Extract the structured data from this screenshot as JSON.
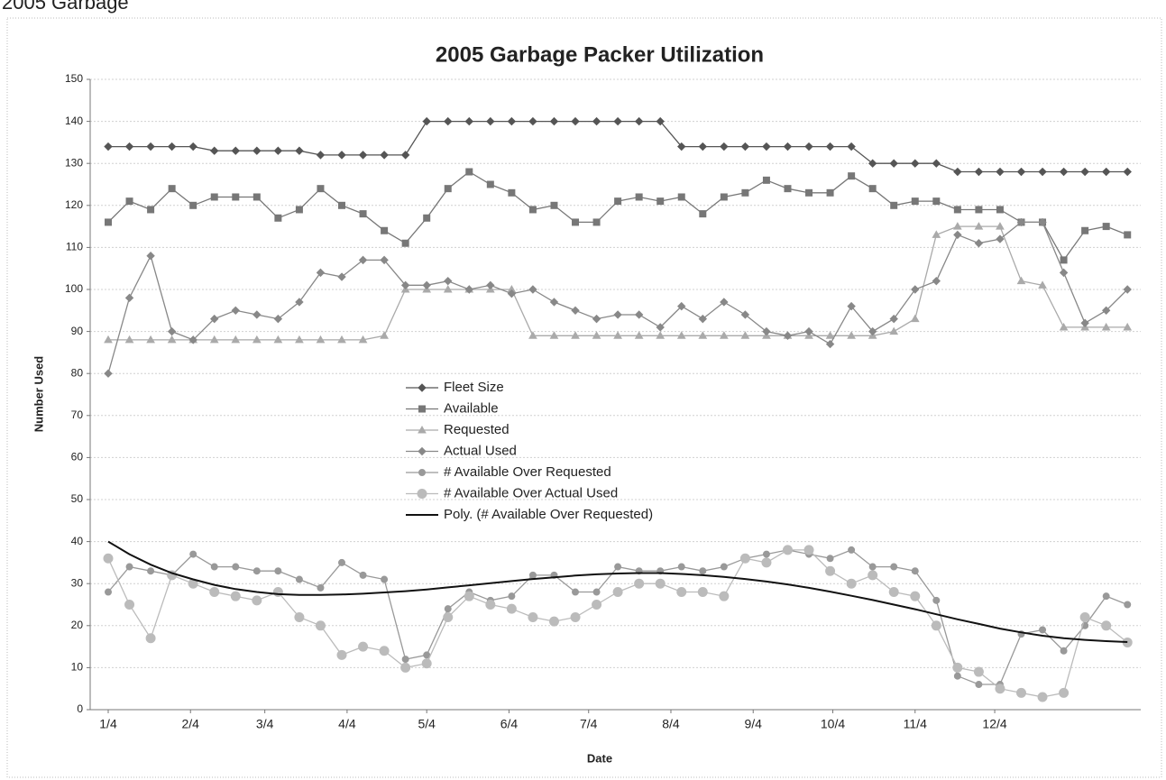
{
  "chart_data": {
    "type": "line",
    "header": "2005 Garbage",
    "title": "2005 Garbage Packer Utilization",
    "x_label": "Date",
    "y_label": "Number Used",
    "x": [
      4,
      12,
      20,
      28,
      36,
      44,
      52,
      60,
      68,
      76,
      84,
      92,
      100,
      108,
      116,
      124,
      132,
      140,
      148,
      156,
      164,
      172,
      180,
      188,
      196,
      204,
      212,
      220,
      228,
      236,
      244,
      252,
      260,
      268,
      276,
      284,
      292,
      300,
      308,
      316,
      324,
      332,
      340,
      348,
      356,
      364,
      372,
      380,
      388
    ],
    "xlim": [
      4,
      392
    ],
    "xticks": [
      {
        "value": 4,
        "label": "1/4"
      },
      {
        "value": 35,
        "label": "2/4"
      },
      {
        "value": 63,
        "label": "3/4"
      },
      {
        "value": 94,
        "label": "4/4"
      },
      {
        "value": 124,
        "label": "5/4"
      },
      {
        "value": 155,
        "label": "6/4"
      },
      {
        "value": 185,
        "label": "7/4"
      },
      {
        "value": 216,
        "label": "8/4"
      },
      {
        "value": 247,
        "label": "9/4"
      },
      {
        "value": 277,
        "label": "10/4"
      },
      {
        "value": 308,
        "label": "11/4"
      },
      {
        "value": 338,
        "label": "12/4"
      }
    ],
    "ylim": [
      0,
      150
    ],
    "yticks": [
      0,
      10,
      20,
      30,
      40,
      50,
      60,
      70,
      80,
      90,
      100,
      110,
      120,
      130,
      140,
      150
    ],
    "grid": true,
    "legend": "center",
    "series": [
      {
        "name": "Fleet Size",
        "color": "#555555",
        "marker": "diamond",
        "values": [
          134,
          134,
          134,
          134,
          134,
          133,
          133,
          133,
          133,
          133,
          132,
          132,
          132,
          132,
          132,
          140,
          140,
          140,
          140,
          140,
          140,
          140,
          140,
          140,
          140,
          140,
          140,
          134,
          134,
          134,
          134,
          134,
          134,
          134,
          134,
          134,
          130,
          130,
          130,
          130,
          128,
          128,
          128,
          128,
          128,
          128,
          128,
          128,
          128
        ]
      },
      {
        "name": "Available",
        "color": "#777777",
        "marker": "square",
        "values": [
          116,
          121,
          119,
          124,
          120,
          122,
          122,
          122,
          117,
          119,
          124,
          120,
          118,
          114,
          111,
          117,
          124,
          128,
          125,
          123,
          119,
          120,
          116,
          116,
          121,
          122,
          121,
          122,
          118,
          122,
          123,
          126,
          124,
          123,
          123,
          127,
          124,
          120,
          121,
          121,
          119,
          119,
          119,
          116,
          116,
          107,
          114,
          115,
          113
        ]
      },
      {
        "name": "Requested",
        "color": "#aaaaaa",
        "marker": "triangle",
        "values": [
          88,
          88,
          88,
          88,
          88,
          88,
          88,
          88,
          88,
          88,
          88,
          88,
          88,
          89,
          100,
          100,
          100,
          100,
          100,
          100,
          89,
          89,
          89,
          89,
          89,
          89,
          89,
          89,
          89,
          89,
          89,
          89,
          89,
          89,
          89,
          89,
          89,
          90,
          93,
          113,
          115,
          115,
          115,
          102,
          101,
          91,
          91,
          91,
          91
        ]
      },
      {
        "name": "Actual Used",
        "color": "#888888",
        "marker": "diamond",
        "values": [
          80,
          98,
          108,
          90,
          88,
          93,
          95,
          94,
          93,
          97,
          104,
          103,
          107,
          107,
          101,
          101,
          102,
          100,
          101,
          99,
          100,
          97,
          95,
          93,
          94,
          94,
          91,
          96,
          93,
          97,
          94,
          90,
          89,
          90,
          87,
          96,
          90,
          93,
          100,
          102,
          113,
          111,
          112,
          116,
          116,
          104,
          92,
          95,
          100
        ]
      },
      {
        "name": "# Available Over Requested",
        "color": "#999999",
        "marker": "circle",
        "values": [
          28,
          34,
          33,
          32,
          37,
          34,
          34,
          33,
          33,
          31,
          29,
          35,
          32,
          31,
          12,
          13,
          24,
          28,
          26,
          27,
          32,
          32,
          28,
          28,
          34,
          33,
          33,
          34,
          33,
          34,
          36,
          37,
          38,
          37,
          36,
          38,
          34,
          34,
          33,
          26,
          8,
          6,
          6,
          18,
          19,
          14,
          20,
          27,
          25
        ]
      },
      {
        "name": "# Available Over Actual Used",
        "color": "#bbbbbb",
        "marker": "bigcircle",
        "values": [
          36,
          25,
          17,
          32,
          30,
          28,
          27,
          26,
          28,
          22,
          20,
          13,
          15,
          14,
          10,
          11,
          22,
          27,
          25,
          24,
          22,
          21,
          22,
          25,
          28,
          30,
          30,
          28,
          28,
          27,
          36,
          35,
          38,
          38,
          33,
          30,
          32,
          28,
          27,
          20,
          10,
          9,
          5,
          4,
          3,
          4,
          22,
          20,
          16
        ]
      },
      {
        "name": "Poly. (# Available Over Requested)",
        "color": "#111111",
        "marker": "none",
        "values": [
          40,
          37,
          34.5,
          32.5,
          31,
          29.7,
          28.7,
          28,
          27.5,
          27.3,
          27.3,
          27.4,
          27.6,
          27.9,
          28.2,
          28.6,
          29.1,
          29.6,
          30.1,
          30.6,
          31.1,
          31.5,
          31.9,
          32.2,
          32.4,
          32.5,
          32.5,
          32.3,
          32,
          31.6,
          31.1,
          30.5,
          29.8,
          29,
          28.1,
          27.1,
          26.1,
          25,
          23.9,
          22.7,
          21.5,
          20.4,
          19.3,
          18.4,
          17.6,
          17,
          16.6,
          16.3,
          16.1
        ]
      }
    ]
  }
}
